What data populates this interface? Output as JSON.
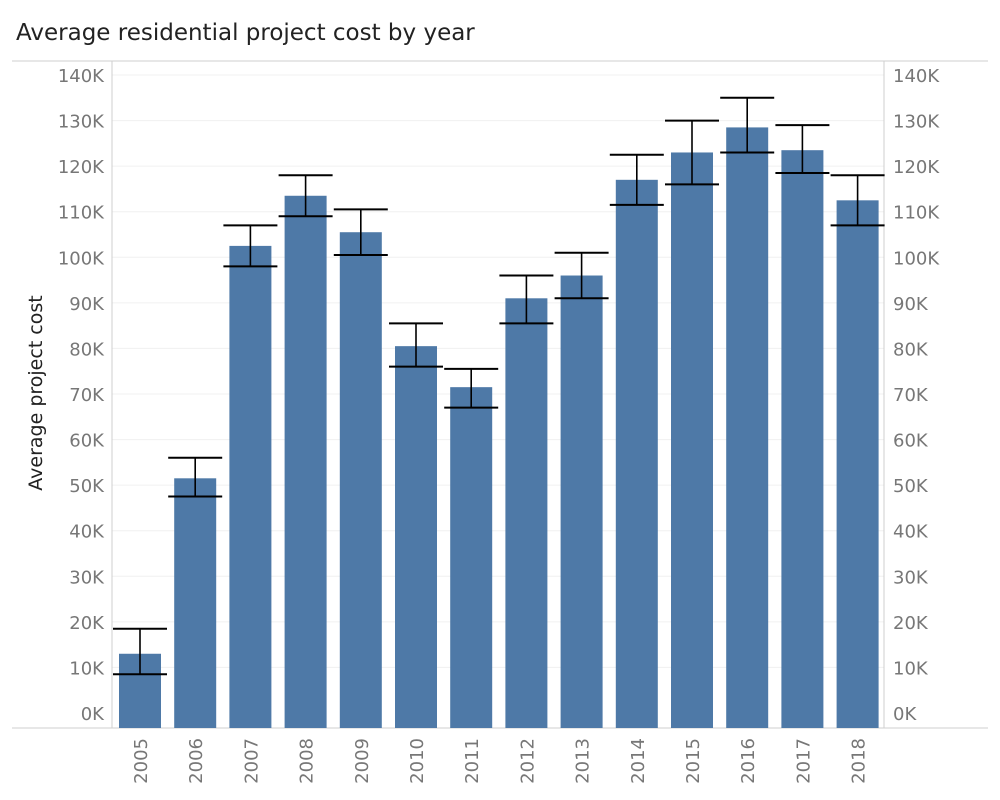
{
  "chart_data": {
    "type": "bar",
    "title": "Average residential project cost by year",
    "xlabel": "",
    "ylabel": "Average project cost",
    "categories": [
      "2005",
      "2006",
      "2007",
      "2008",
      "2009",
      "2010",
      "2011",
      "2012",
      "2013",
      "2014",
      "2015",
      "2016",
      "2017",
      "2018"
    ],
    "values": [
      13000,
      51500,
      102500,
      113500,
      105500,
      80500,
      71500,
      91000,
      96000,
      117000,
      123000,
      128500,
      123500,
      112500
    ],
    "error_bars": [
      {
        "low": 8500,
        "high": 18500
      },
      {
        "low": 47500,
        "high": 56000
      },
      {
        "low": 98000,
        "high": 107000
      },
      {
        "low": 109000,
        "high": 118000
      },
      {
        "low": 100500,
        "high": 110500
      },
      {
        "low": 76000,
        "high": 85500
      },
      {
        "low": 67000,
        "high": 75500
      },
      {
        "low": 85500,
        "high": 96000
      },
      {
        "low": 91000,
        "high": 101000
      },
      {
        "low": 111500,
        "high": 122500
      },
      {
        "low": 116000,
        "high": 130000
      },
      {
        "low": 123000,
        "high": 135000
      },
      {
        "low": 118500,
        "high": 129000
      },
      {
        "low": 107000,
        "high": 118000
      }
    ],
    "y_ticks": [
      0,
      10000,
      20000,
      30000,
      40000,
      50000,
      60000,
      70000,
      80000,
      90000,
      100000,
      110000,
      120000,
      130000,
      140000
    ],
    "y_tick_labels": [
      "0K",
      "10K",
      "20K",
      "30K",
      "40K",
      "50K",
      "60K",
      "70K",
      "80K",
      "90K",
      "100K",
      "110K",
      "120K",
      "130K",
      "140K"
    ],
    "ylim": [
      0,
      140000
    ],
    "grid": true,
    "legend": "none",
    "colors": {
      "bar": "#4e79a7",
      "error_bar": "#000000",
      "grid": "#f0f0f0",
      "axis": "#cfcfcf",
      "tick_text": "#777777",
      "title_text": "#222222"
    }
  }
}
